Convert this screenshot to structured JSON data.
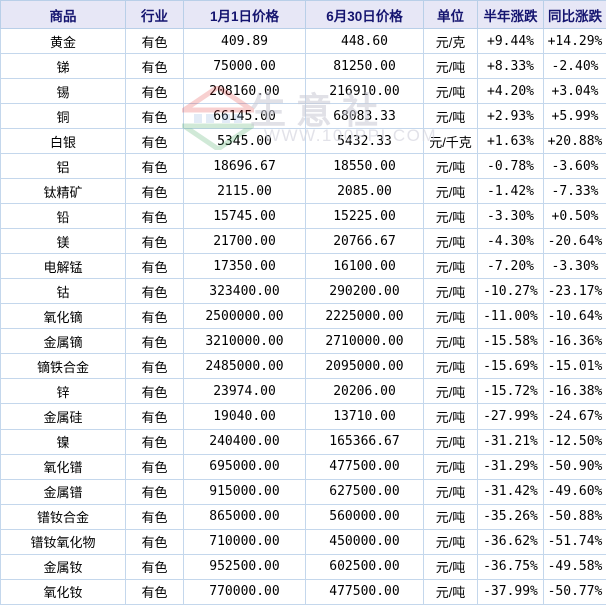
{
  "watermark": {
    "brand": "生意社",
    "url": "WWW.100PPI.COM"
  },
  "colors": {
    "positive_change": "#fe0000",
    "negative_change": "#00a000",
    "header_bg": "#e7e7f6",
    "header_text": "#151570",
    "product_link": "#2257a5",
    "grid_border": "#c4d7ec"
  },
  "chart_data": {
    "type": "table",
    "headers": [
      "商品",
      "行业",
      "1月1日价格",
      "6月30日价格",
      "单位",
      "半年涨跌",
      "同比涨跌"
    ],
    "rows": [
      [
        "黄金",
        "有色",
        "409.89",
        "448.60",
        "元/克",
        "+9.44%",
        "+14.29%"
      ],
      [
        "锑",
        "有色",
        "75000.00",
        "81250.00",
        "元/吨",
        "+8.33%",
        "-2.40%"
      ],
      [
        "锡",
        "有色",
        "208160.00",
        "216910.00",
        "元/吨",
        "+4.20%",
        "+3.04%"
      ],
      [
        "铜",
        "有色",
        "66145.00",
        "68083.33",
        "元/吨",
        "+2.93%",
        "+5.99%"
      ],
      [
        "白银",
        "有色",
        "5345.00",
        "5432.33",
        "元/千克",
        "+1.63%",
        "+20.88%"
      ],
      [
        "铝",
        "有色",
        "18696.67",
        "18550.00",
        "元/吨",
        "-0.78%",
        "-3.60%"
      ],
      [
        "钛精矿",
        "有色",
        "2115.00",
        "2085.00",
        "元/吨",
        "-1.42%",
        "-7.33%"
      ],
      [
        "铅",
        "有色",
        "15745.00",
        "15225.00",
        "元/吨",
        "-3.30%",
        "+0.50%"
      ],
      [
        "镁",
        "有色",
        "21700.00",
        "20766.67",
        "元/吨",
        "-4.30%",
        "-20.64%"
      ],
      [
        "电解锰",
        "有色",
        "17350.00",
        "16100.00",
        "元/吨",
        "-7.20%",
        "-3.30%"
      ],
      [
        "钴",
        "有色",
        "323400.00",
        "290200.00",
        "元/吨",
        "-10.27%",
        "-23.17%"
      ],
      [
        "氧化镝",
        "有色",
        "2500000.00",
        "2225000.00",
        "元/吨",
        "-11.00%",
        "-10.64%"
      ],
      [
        "金属镝",
        "有色",
        "3210000.00",
        "2710000.00",
        "元/吨",
        "-15.58%",
        "-16.36%"
      ],
      [
        "镝铁合金",
        "有色",
        "2485000.00",
        "2095000.00",
        "元/吨",
        "-15.69%",
        "-15.01%"
      ],
      [
        "锌",
        "有色",
        "23974.00",
        "20206.00",
        "元/吨",
        "-15.72%",
        "-16.38%"
      ],
      [
        "金属硅",
        "有色",
        "19040.00",
        "13710.00",
        "元/吨",
        "-27.99%",
        "-24.67%"
      ],
      [
        "镍",
        "有色",
        "240400.00",
        "165366.67",
        "元/吨",
        "-31.21%",
        "-12.50%"
      ],
      [
        "氧化镨",
        "有色",
        "695000.00",
        "477500.00",
        "元/吨",
        "-31.29%",
        "-50.90%"
      ],
      [
        "金属镨",
        "有色",
        "915000.00",
        "627500.00",
        "元/吨",
        "-31.42%",
        "-49.60%"
      ],
      [
        "镨钕合金",
        "有色",
        "865000.00",
        "560000.00",
        "元/吨",
        "-35.26%",
        "-50.88%"
      ],
      [
        "镨钕氧化物",
        "有色",
        "710000.00",
        "450000.00",
        "元/吨",
        "-36.62%",
        "-51.74%"
      ],
      [
        "金属钕",
        "有色",
        "952500.00",
        "602500.00",
        "元/吨",
        "-36.75%",
        "-49.58%"
      ],
      [
        "氧化钕",
        "有色",
        "770000.00",
        "477500.00",
        "元/吨",
        "-37.99%",
        "-50.77%"
      ]
    ]
  }
}
